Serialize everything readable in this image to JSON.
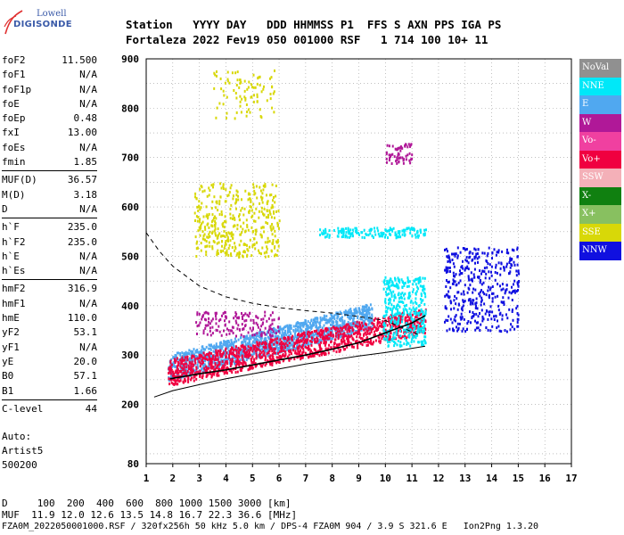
{
  "logo": {
    "line1": "Lowell",
    "line2": "DIGISONDE"
  },
  "header": {
    "line1": "Station   YYYY DAY   DDD HHMMSS P1  FFS S AXN PPS IGA PS",
    "line2": "Fortaleza 2022 Fev19 050 001000 RSF   1 714 100 10+ 11"
  },
  "params": [
    {
      "k": "foF2",
      "v": "11.500"
    },
    {
      "k": "foF1",
      "v": "N/A"
    },
    {
      "k": "foF1p",
      "v": "N/A"
    },
    {
      "k": "foE",
      "v": "N/A"
    },
    {
      "k": "foEp",
      "v": "0.48"
    },
    {
      "k": "fxI",
      "v": "13.00"
    },
    {
      "k": "foEs",
      "v": "N/A"
    },
    {
      "k": "fmin",
      "v": "1.85"
    },
    {
      "k": "MUF(D)",
      "v": "36.57"
    },
    {
      "k": "M(D)",
      "v": "3.18"
    },
    {
      "k": "D",
      "v": "N/A"
    },
    {
      "k": "h`F",
      "v": "235.0"
    },
    {
      "k": "h`F2",
      "v": "235.0"
    },
    {
      "k": "h`E",
      "v": "N/A"
    },
    {
      "k": "h`Es",
      "v": "N/A"
    },
    {
      "k": "hmF2",
      "v": "316.9"
    },
    {
      "k": "hmF1",
      "v": "N/A"
    },
    {
      "k": "hmE",
      "v": "110.0"
    },
    {
      "k": "yF2",
      "v": "53.1"
    },
    {
      "k": "yF1",
      "v": "N/A"
    },
    {
      "k": "yE",
      "v": "20.0"
    },
    {
      "k": "B0",
      "v": "57.1"
    },
    {
      "k": "B1",
      "v": "1.66"
    },
    {
      "k": "C-level",
      "v": "44"
    }
  ],
  "autoscaling": {
    "line1": "Auto:",
    "line2": "Artist5",
    "line3": "500200"
  },
  "legend": [
    {
      "label": "NoVal",
      "color": "#909090"
    },
    {
      "label": "NNE",
      "color": "#00e8f8"
    },
    {
      "label": "E",
      "color": "#50a8f0"
    },
    {
      "label": "W",
      "color": "#b01898"
    },
    {
      "label": "Vo-",
      "color": "#f040a0"
    },
    {
      "label": "Vo+",
      "color": "#f00040"
    },
    {
      "label": "SSW",
      "color": "#f4b0b8"
    },
    {
      "label": "X-",
      "color": "#108010"
    },
    {
      "label": "X+",
      "color": "#88c060"
    },
    {
      "label": "SSE",
      "color": "#d8d808"
    },
    {
      "label": "NNW",
      "color": "#1010e0"
    }
  ],
  "footer": {
    "line1": "D     100  200  400  600  800 1000 1500 3000 [km]",
    "line2": "MUF  11.9 12.0 12.6 13.5 14.8 16.7 22.3 36.6 [MHz]",
    "line3": "FZA0M_2022050001000.RSF / 320fx256h 50 kHz 5.0 km / DPS-4 FZA0M 904 / 3.9 S 321.6 E   Ion2Png 1.3.20"
  },
  "chart_data": {
    "type": "scatter",
    "title": "",
    "xlabel": "",
    "ylabel": "",
    "xlim": [
      1,
      17
    ],
    "ylim": [
      80,
      900
    ],
    "x_ticks": [
      1,
      2,
      3,
      4,
      5,
      6,
      7,
      8,
      9,
      10,
      11,
      12,
      13,
      14,
      15,
      16,
      17
    ],
    "y_ticks": [
      80,
      200,
      300,
      400,
      500,
      600,
      700,
      800,
      900
    ],
    "grid": true,
    "legend_position": "right",
    "echo_groups": [
      {
        "name": "E",
        "x": [
          1.8,
          9.5
        ],
        "y": [
          250,
          400
        ]
      },
      {
        "name": "Vo+",
        "x": [
          1.8,
          11.5
        ],
        "y": [
          240,
          390
        ]
      },
      {
        "name": "NNE",
        "x": [
          9.9,
          11.5
        ],
        "y": [
          320,
          460
        ]
      },
      {
        "name": "W",
        "x": [
          2.8,
          6.0
        ],
        "y": [
          340,
          390
        ]
      },
      {
        "name": "SSE",
        "x": [
          2.8,
          6.0
        ],
        "y": [
          500,
          650
        ]
      },
      {
        "name": "SSE",
        "x": [
          3.5,
          5.8
        ],
        "y": [
          780,
          880
        ]
      },
      {
        "name": "NNE",
        "x": [
          7.5,
          11.5
        ],
        "y": [
          540,
          560
        ]
      },
      {
        "name": "NNW",
        "x": [
          12.2,
          15.0
        ],
        "y": [
          350,
          520
        ]
      },
      {
        "name": "W",
        "x": [
          10.0,
          11.0
        ],
        "y": [
          690,
          730
        ]
      }
    ],
    "trace_lower": {
      "x": [
        1.3,
        2,
        3,
        4,
        5,
        6,
        7,
        8,
        9,
        10,
        10.8,
        11.5
      ],
      "y": [
        215,
        228,
        240,
        252,
        262,
        272,
        282,
        290,
        298,
        305,
        312,
        318
      ]
    },
    "trace_dashed": {
      "x": [
        1,
        1.5,
        2,
        3,
        4,
        5,
        6,
        7,
        8,
        9,
        10,
        11.3
      ],
      "y": [
        548,
        510,
        480,
        440,
        418,
        405,
        396,
        390,
        385,
        378,
        370,
        340
      ]
    },
    "profile_curve": {
      "x": [
        1.9,
        3,
        4,
        5,
        6,
        7,
        8,
        9,
        10,
        11,
        11.5
      ],
      "y": [
        252,
        262,
        270,
        280,
        290,
        300,
        312,
        325,
        345,
        365,
        380
      ]
    }
  }
}
